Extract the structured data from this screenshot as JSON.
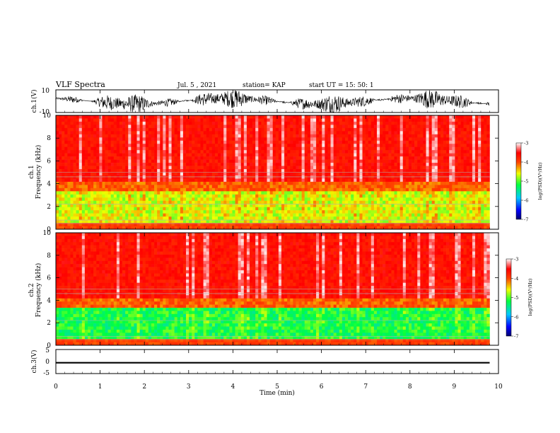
{
  "header": {
    "title": "VLF Spectra",
    "date": "Jul. 5 , 2021",
    "station": "station= KAP",
    "start_ut": "start UT = 15: 50: 1"
  },
  "chart_data": [
    {
      "type": "line",
      "name": "ch1-waveform",
      "ylabel": "ch.1(V)",
      "ylim": [
        -10,
        10
      ],
      "yticks": [
        "10",
        "-10"
      ],
      "xlim": [
        0,
        10
      ],
      "x_data_end": 9.8
    },
    {
      "type": "heatmap",
      "name": "ch1-spectrogram",
      "ylabel": "ch.1\nFrequency (kHz)",
      "ylim": [
        0,
        10
      ],
      "yticks": [
        "0",
        "2",
        "4",
        "6",
        "8",
        "10"
      ],
      "xlim": [
        0,
        10
      ],
      "colorbar": {
        "label": "log(PSD)(V²/Hz)",
        "ticks": [
          "-3",
          "-4",
          "-5",
          "-6",
          "-7"
        ],
        "range": [
          -7,
          -3
        ]
      }
    },
    {
      "type": "heatmap",
      "name": "ch2-spectrogram",
      "ylabel": "ch.2\nFrequency (kHz)",
      "ylim": [
        0,
        10
      ],
      "yticks": [
        "0",
        "2",
        "4",
        "6",
        "8",
        "10"
      ],
      "xlim": [
        0,
        10
      ],
      "colorbar": {
        "label": "log(PSD)(V²/Hz)",
        "ticks": [
          "-3",
          "-4",
          "-5",
          "-6",
          "-7"
        ],
        "range": [
          -7,
          -3
        ]
      }
    },
    {
      "type": "line",
      "name": "ch3-waveform",
      "ylabel": "ch.3(V)",
      "ylim": [
        -5,
        5
      ],
      "yticks": [
        "5",
        "0",
        "-5"
      ],
      "xlim": [
        0,
        10
      ],
      "x_data_end": 9.8,
      "approx_level": -0.5
    }
  ],
  "xaxis": {
    "label": "Time (min)",
    "ticks": [
      "0",
      "1",
      "2",
      "3",
      "4",
      "5",
      "6",
      "7",
      "8",
      "9",
      "10"
    ]
  },
  "colors": {
    "frame": "#000000",
    "waveform": "#000000"
  }
}
